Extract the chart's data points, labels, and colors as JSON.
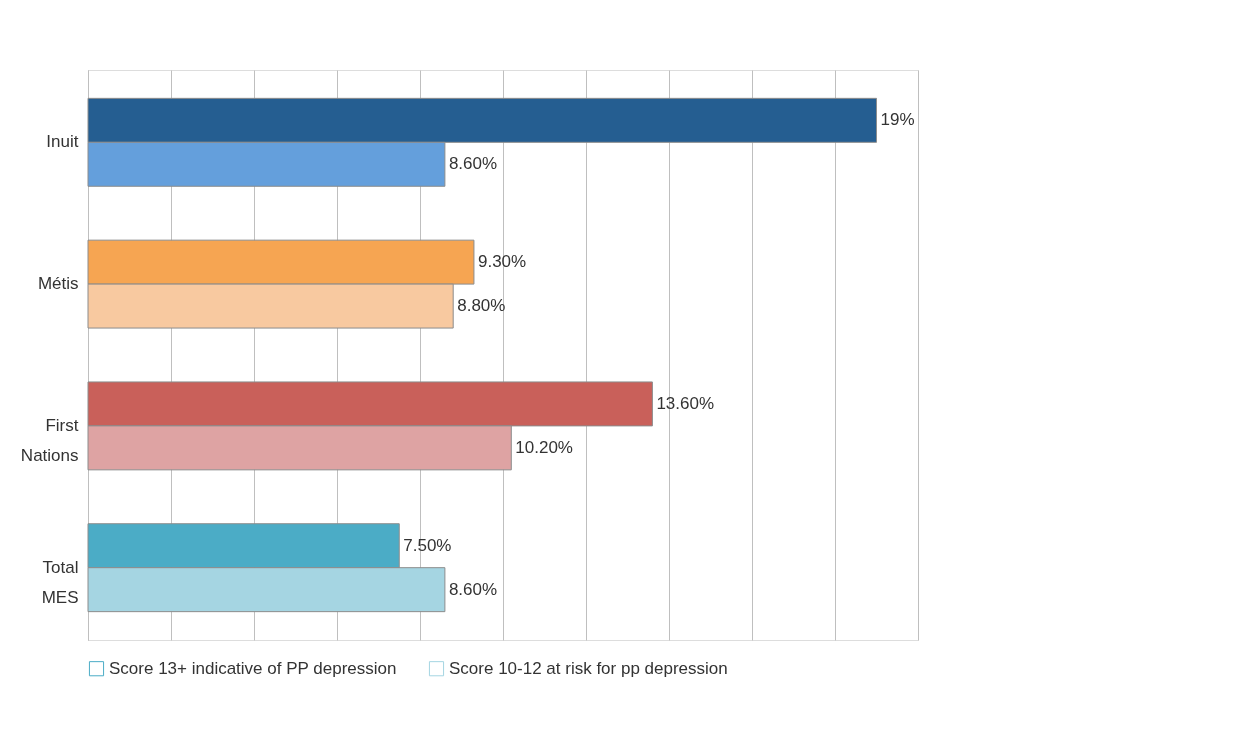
{
  "chart_data": {
    "type": "bar",
    "orientation": "horizontal",
    "categories": [
      "Inuit",
      "Métis",
      "First Nations",
      "Total MES"
    ],
    "series": [
      {
        "name": "Score 13+ indicative of PP depression",
        "color": "#4bacc6",
        "colors": [
          "#255e91",
          "#f6a552",
          "#c9605a",
          "#4bacc6"
        ],
        "values": [
          19,
          9.3,
          13.6,
          7.5
        ],
        "value_labels": [
          "19%",
          "9.30%",
          "13.60%",
          "7.50%"
        ]
      },
      {
        "name": "Score 10-12 at risk for pp depression",
        "color": "#a5d5e2",
        "colors": [
          "#649fdc",
          "#f8c9a0",
          "#dea3a3",
          "#a5d5e2"
        ],
        "values": [
          8.6,
          8.8,
          10.2,
          8.6
        ],
        "value_labels": [
          "8.60%",
          "8.80%",
          "10.20%",
          "8.60%"
        ]
      }
    ],
    "xlim": [
      0,
      20
    ],
    "xticks": [
      {
        "value": 0,
        "label": null
      },
      {
        "value": 2,
        "label": null
      },
      {
        "value": 4,
        "label": null
      },
      {
        "value": 6,
        "label": null
      },
      {
        "value": 8,
        "label": null
      },
      {
        "value": 10,
        "label": null
      },
      {
        "value": 12,
        "label": null
      },
      {
        "value": 14,
        "label": null
      },
      {
        "value": 16,
        "label": null
      },
      {
        "value": 18,
        "label": null
      },
      {
        "value": 20,
        "label": null
      }
    ],
    "grid": "x",
    "legend": "bottom",
    "tick_labels": "y"
  }
}
